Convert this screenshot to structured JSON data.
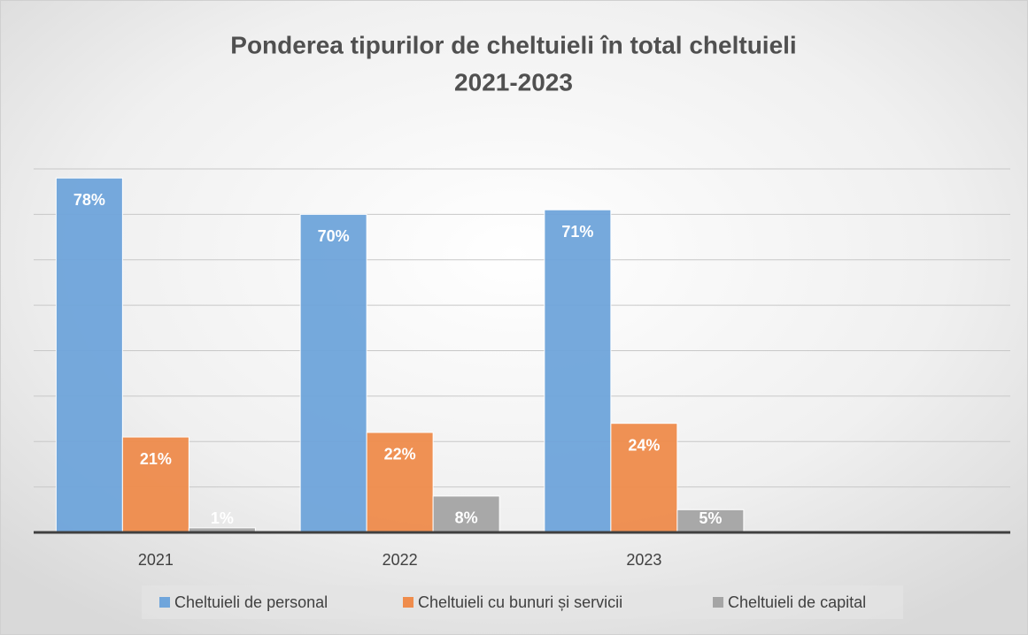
{
  "chart_data": {
    "type": "bar",
    "title": [
      "Ponderea tipurilor de cheltuieli în total cheltuieli",
      "2021-2023"
    ],
    "categories": [
      "2021",
      "2022",
      "2023",
      null
    ],
    "series": [
      {
        "name": "Cheltuieli de personal",
        "color": "#6fa5db",
        "values": [
          78,
          70,
          71,
          null
        ],
        "value_labels": [
          "78%",
          "70%",
          "71%",
          null
        ]
      },
      {
        "name": "Cheltuieli cu bunuri și servicii",
        "color": "#ef8c4c",
        "values": [
          21,
          22,
          24,
          null
        ],
        "value_labels": [
          "21%",
          "22%",
          "24%",
          null
        ]
      },
      {
        "name": "Cheltuieli de capital",
        "color": "#a5a5a5",
        "values": [
          1,
          8,
          5,
          null
        ],
        "value_labels": [
          "1%",
          "8%",
          "5%",
          null
        ]
      }
    ],
    "ylim": [
      0,
      80
    ],
    "yticks": [
      0,
      10,
      20,
      30,
      40,
      50,
      60,
      70,
      80
    ],
    "grid": true,
    "legend": "bottom"
  }
}
